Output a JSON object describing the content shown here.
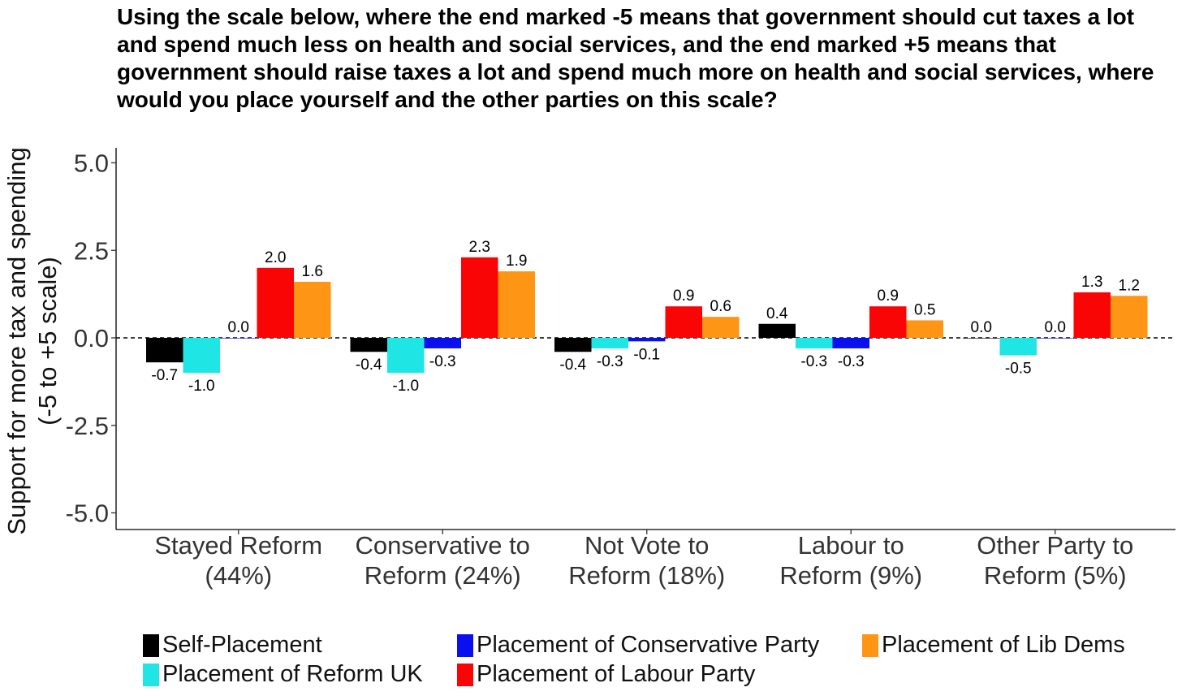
{
  "chart_data": {
    "type": "bar",
    "title": "Using the scale below, where the end marked -5 means that government should cut taxes a lot and spend much less on health and social services, and the end marked +5 means that government should raise taxes a lot and spend much more on health and social services, where would you place yourself and the other parties on this scale?",
    "ylabel_line1": "Support for more tax and spending",
    "ylabel_line2": "(-5 to +5 scale)",
    "xlabel": "",
    "ylim": [
      -5.5,
      5.5
    ],
    "yticks": [
      -5.0,
      -2.5,
      0.0,
      2.5,
      5.0
    ],
    "ytick_labels": [
      "-5.0",
      "-2.5",
      "0.0",
      "2.5",
      "5.0"
    ],
    "grid": false,
    "zero_line": "dashed",
    "categories": [
      {
        "line1": "Stayed Reform",
        "line2": "(44%)"
      },
      {
        "line1": "Conservative to",
        "line2": "Reform (24%)"
      },
      {
        "line1": "Not Vote to",
        "line2": "Reform (18%)"
      },
      {
        "line1": "Labour to",
        "line2": "Reform (9%)"
      },
      {
        "line1": "Other Party to",
        "line2": "Reform (5%)"
      }
    ],
    "series": [
      {
        "name": "Self-Placement",
        "color": "#000000",
        "values": [
          -0.7,
          -0.4,
          -0.4,
          0.4,
          0.0
        ],
        "labels": [
          "-0.7",
          "-0.4",
          "-0.4",
          "0.4",
          "0.0"
        ]
      },
      {
        "name": "Placement of Reform UK",
        "color": "#1fe5e5",
        "values": [
          -1.0,
          -1.0,
          -0.3,
          -0.3,
          -0.5
        ],
        "labels": [
          "-1.0",
          "-1.0",
          "-0.3",
          "-0.3",
          "-0.5"
        ]
      },
      {
        "name": "Placement of Conservative Party",
        "color": "#0a0ff0",
        "values": [
          0.0,
          -0.3,
          -0.1,
          -0.3,
          0.0
        ],
        "labels": [
          "0.0",
          "-0.3",
          "-0.1",
          "-0.3",
          "0.0"
        ]
      },
      {
        "name": "Placement of Labour Party",
        "color": "#fa0505",
        "values": [
          2.0,
          2.3,
          0.9,
          0.9,
          1.3
        ],
        "labels": [
          "2.0",
          "2.3",
          "0.9",
          "0.9",
          "1.3"
        ]
      },
      {
        "name": "Placement of Lib Dems",
        "color": "#ff9514",
        "values": [
          1.6,
          1.9,
          0.6,
          0.5,
          1.2
        ],
        "labels": [
          "1.6",
          "1.9",
          "0.6",
          "0.5",
          "1.2"
        ]
      }
    ],
    "legend_position": "bottom"
  }
}
